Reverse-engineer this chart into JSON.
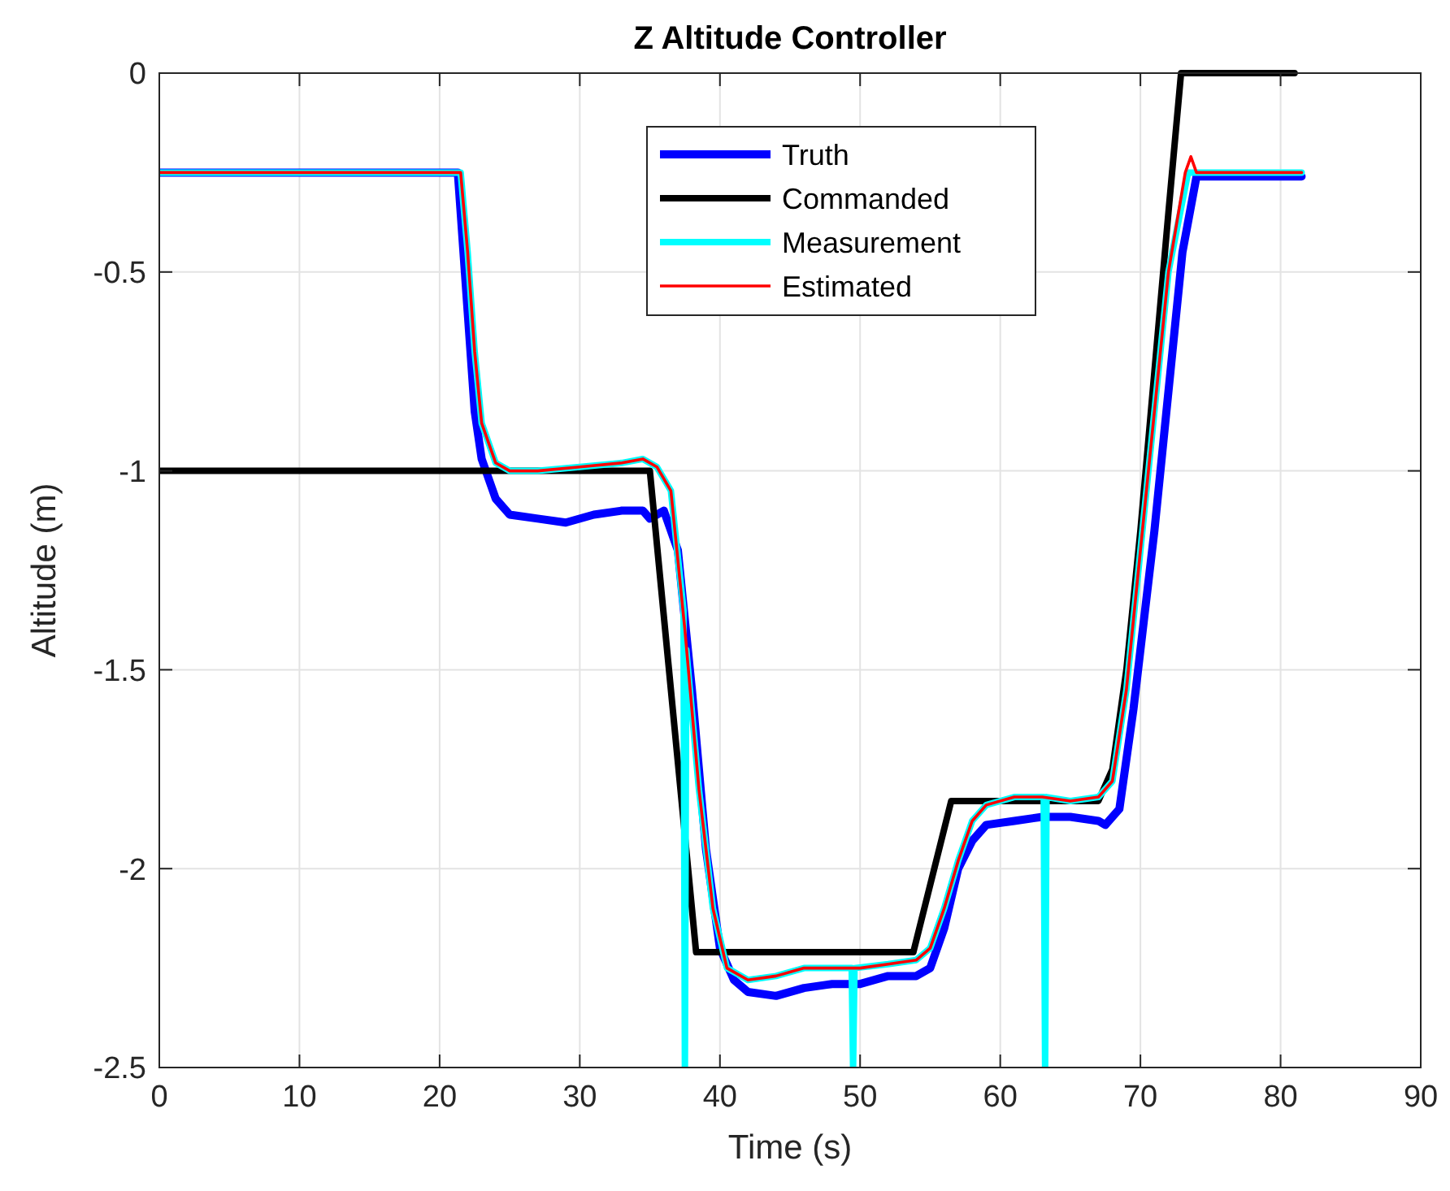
{
  "chart_data": {
    "type": "line",
    "title": "Z Altitude Controller",
    "xlabel": "Time (s)",
    "ylabel": "Altitude (m)",
    "xlim": [
      0,
      90
    ],
    "xticks": [
      0,
      10,
      20,
      30,
      40,
      50,
      60,
      70,
      80,
      90
    ],
    "ylim": [
      -2.5,
      0
    ],
    "yticks": [
      -2.5,
      -2,
      -1.5,
      -1,
      -0.5,
      0
    ],
    "grid": true,
    "legend": "top",
    "line_style": "solid",
    "series": [
      {
        "name": "Truth",
        "color": "#0000ff",
        "x": [
          0,
          21.3,
          22,
          22.5,
          23,
          24,
          25,
          27,
          29,
          31,
          33,
          34.5,
          35,
          36,
          37,
          38,
          39,
          40,
          41,
          42,
          44,
          46,
          48,
          50,
          52,
          54,
          55,
          56,
          57,
          58,
          59,
          61,
          63,
          65,
          67,
          67.5,
          68.5,
          69.5,
          71,
          72,
          73,
          74,
          81.5
        ],
        "values": [
          -0.25,
          -0.25,
          -0.6,
          -0.85,
          -0.97,
          -1.07,
          -1.11,
          -1.12,
          -1.13,
          -1.11,
          -1.1,
          -1.1,
          -1.12,
          -1.1,
          -1.2,
          -1.55,
          -1.95,
          -2.2,
          -2.28,
          -2.31,
          -2.32,
          -2.3,
          -2.29,
          -2.29,
          -2.27,
          -2.27,
          -2.25,
          -2.15,
          -2,
          -1.93,
          -1.89,
          -1.88,
          -1.87,
          -1.87,
          -1.88,
          -1.89,
          -1.85,
          -1.6,
          -1.15,
          -0.8,
          -0.45,
          -0.26,
          -0.26
        ]
      },
      {
        "name": "Commanded",
        "color": "#000000",
        "x": [
          0,
          35,
          38.3,
          53.8,
          56.5,
          67,
          68,
          69,
          70,
          71,
          72,
          72.9,
          81
        ],
        "values": [
          -1,
          -1,
          -2.21,
          -2.21,
          -1.83,
          -1.83,
          -1.75,
          -1.5,
          -1.15,
          -0.75,
          -0.35,
          0,
          0
        ]
      },
      {
        "name": "Measurement",
        "color": "#00ffff",
        "x": [
          0,
          21.5,
          22,
          22.5,
          23,
          24,
          25,
          27,
          30,
          33,
          34.5,
          35.5,
          36.5,
          37.4,
          37.5,
          37.6,
          38.5,
          39.5,
          40.5,
          42,
          44,
          46,
          48,
          49.4,
          49.5,
          49.6,
          52,
          54,
          55,
          56,
          57,
          58,
          59,
          61,
          63.1,
          63.2,
          63.3,
          65,
          67,
          68,
          69,
          70,
          71,
          72,
          73.4,
          74,
          81.5
        ],
        "values": [
          -0.25,
          -0.25,
          -0.45,
          -0.7,
          -0.88,
          -0.98,
          -1,
          -1,
          -0.99,
          -0.98,
          -0.97,
          -0.99,
          -1.05,
          -1.35,
          -2.5,
          -1.45,
          -1.8,
          -2.1,
          -2.25,
          -2.28,
          -2.27,
          -2.25,
          -2.25,
          -2.25,
          -2.5,
          -2.25,
          -2.24,
          -2.23,
          -2.2,
          -2.1,
          -1.98,
          -1.88,
          -1.84,
          -1.82,
          -1.82,
          -2.5,
          -1.82,
          -1.83,
          -1.82,
          -1.78,
          -1.55,
          -1.2,
          -0.85,
          -0.5,
          -0.25,
          -0.25,
          -0.25
        ]
      },
      {
        "name": "Estimated",
        "color": "#ff0000",
        "x": [
          0,
          21.5,
          22,
          22.5,
          23,
          24,
          25,
          27,
          30,
          33,
          34.5,
          35.5,
          36.5,
          37.5,
          38.5,
          39.5,
          40.5,
          42,
          44,
          46,
          48,
          50,
          52,
          54,
          55,
          56,
          57,
          58,
          59,
          61,
          63,
          65,
          67,
          68,
          69,
          70,
          71,
          72,
          73.2,
          73.6,
          74,
          81.5
        ],
        "values": [
          -0.25,
          -0.25,
          -0.45,
          -0.7,
          -0.88,
          -0.98,
          -1,
          -1,
          -0.99,
          -0.98,
          -0.97,
          -0.99,
          -1.05,
          -1.4,
          -1.8,
          -2.1,
          -2.25,
          -2.28,
          -2.27,
          -2.25,
          -2.25,
          -2.25,
          -2.24,
          -2.23,
          -2.2,
          -2.1,
          -1.98,
          -1.88,
          -1.84,
          -1.82,
          -1.82,
          -1.83,
          -1.82,
          -1.78,
          -1.55,
          -1.2,
          -0.85,
          -0.5,
          -0.25,
          -0.21,
          -0.25,
          -0.25
        ]
      }
    ]
  }
}
